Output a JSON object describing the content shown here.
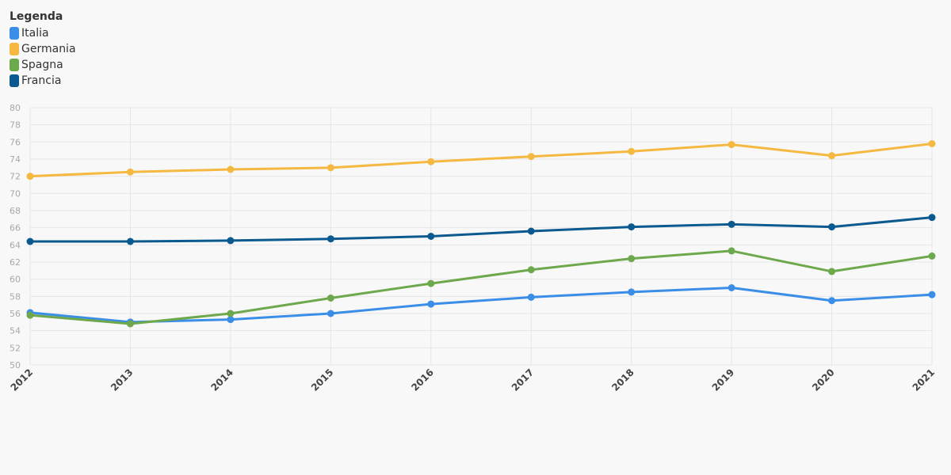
{
  "legend": {
    "title": "Legenda"
  },
  "chart_data": {
    "type": "line",
    "title": "",
    "xlabel": "",
    "ylabel": "",
    "x": [
      "2012",
      "2013",
      "2014",
      "2015",
      "2016",
      "2017",
      "2018",
      "2019",
      "2020",
      "2021"
    ],
    "ylim": [
      50,
      80
    ],
    "yticks": [
      50,
      52,
      54,
      56,
      58,
      60,
      62,
      64,
      66,
      68,
      70,
      72,
      74,
      76,
      78,
      80
    ],
    "grid": true,
    "legend_position": "top-left",
    "series": [
      {
        "name": "Italia",
        "color": "#3b8ee8",
        "values": [
          56.1,
          55.0,
          55.3,
          56.0,
          57.1,
          57.9,
          58.5,
          59.0,
          57.5,
          58.2
        ]
      },
      {
        "name": "Germania",
        "color": "#f5b942",
        "values": [
          72.0,
          72.5,
          72.8,
          73.0,
          73.7,
          74.3,
          74.9,
          75.7,
          74.4,
          75.8
        ]
      },
      {
        "name": "Spagna",
        "color": "#6ea84c",
        "values": [
          55.8,
          54.8,
          56.0,
          57.8,
          59.5,
          61.1,
          62.4,
          63.3,
          60.9,
          62.7
        ]
      },
      {
        "name": "Francia",
        "color": "#0b5a8f",
        "values": [
          64.4,
          64.4,
          64.5,
          64.7,
          65.0,
          65.6,
          66.1,
          66.4,
          66.1,
          67.2
        ]
      }
    ]
  }
}
